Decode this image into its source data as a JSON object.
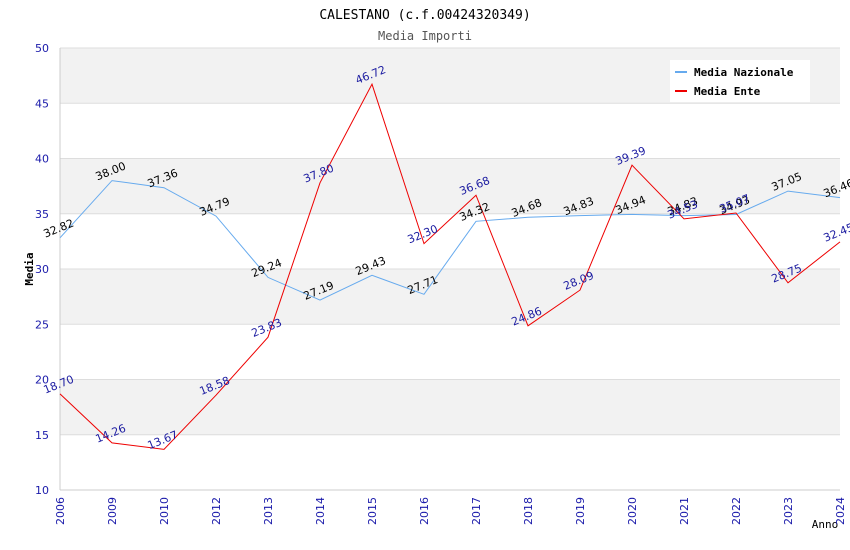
{
  "chart_data": {
    "type": "line",
    "title": "CALESTANO (c.f.00424320349)",
    "subtitle": "Media Importi",
    "xlabel": "Anno",
    "ylabel": "Media",
    "ylim": [
      10,
      50
    ],
    "yticks": [
      "10",
      "15",
      "20",
      "25",
      "30",
      "35",
      "40",
      "45",
      "50"
    ],
    "categories": [
      "2006",
      "2009",
      "2010",
      "2012",
      "2013",
      "2014",
      "2015",
      "2016",
      "2017",
      "2018",
      "2019",
      "2020",
      "2021",
      "2022",
      "2023",
      "2024"
    ],
    "series": [
      {
        "name": "Media Nazionale",
        "color": "#66aaee",
        "label_color": "#000000",
        "values": [
          32.82,
          38.0,
          37.36,
          34.79,
          29.24,
          27.19,
          29.43,
          27.71,
          34.32,
          34.68,
          34.83,
          34.94,
          34.83,
          34.93,
          37.05,
          36.46
        ],
        "labels": [
          "32.82",
          "38.00",
          "37.36",
          "34.79",
          "29.24",
          "27.19",
          "29.43",
          "27.71",
          "34.32",
          "34.68",
          "34.83",
          "34.94",
          "34.83",
          "34.93",
          "37.05",
          "36.46"
        ]
      },
      {
        "name": "Media Ente",
        "color": "#ee0000",
        "label_color": "#1a1aa0",
        "values": [
          18.7,
          14.26,
          13.67,
          18.58,
          23.83,
          37.8,
          46.72,
          32.3,
          36.68,
          24.86,
          28.09,
          39.39,
          34.53,
          35.07,
          28.75,
          32.45
        ],
        "labels": [
          "18.70",
          "14.26",
          "13.67",
          "18.58",
          "23.83",
          "37.80",
          "46.72",
          "32.30",
          "36.68",
          "24.86",
          "28.09",
          "39.39",
          "34.53",
          "35.07",
          "28.75",
          "32.45"
        ]
      }
    ],
    "legend_position": "top-right",
    "grid": true,
    "colors": {
      "band": "#f2f2f2",
      "gridline": "#dddddd",
      "axis_tick_labels": "#1a1aaa",
      "title": "#000000",
      "subtitle": "#555555"
    }
  }
}
